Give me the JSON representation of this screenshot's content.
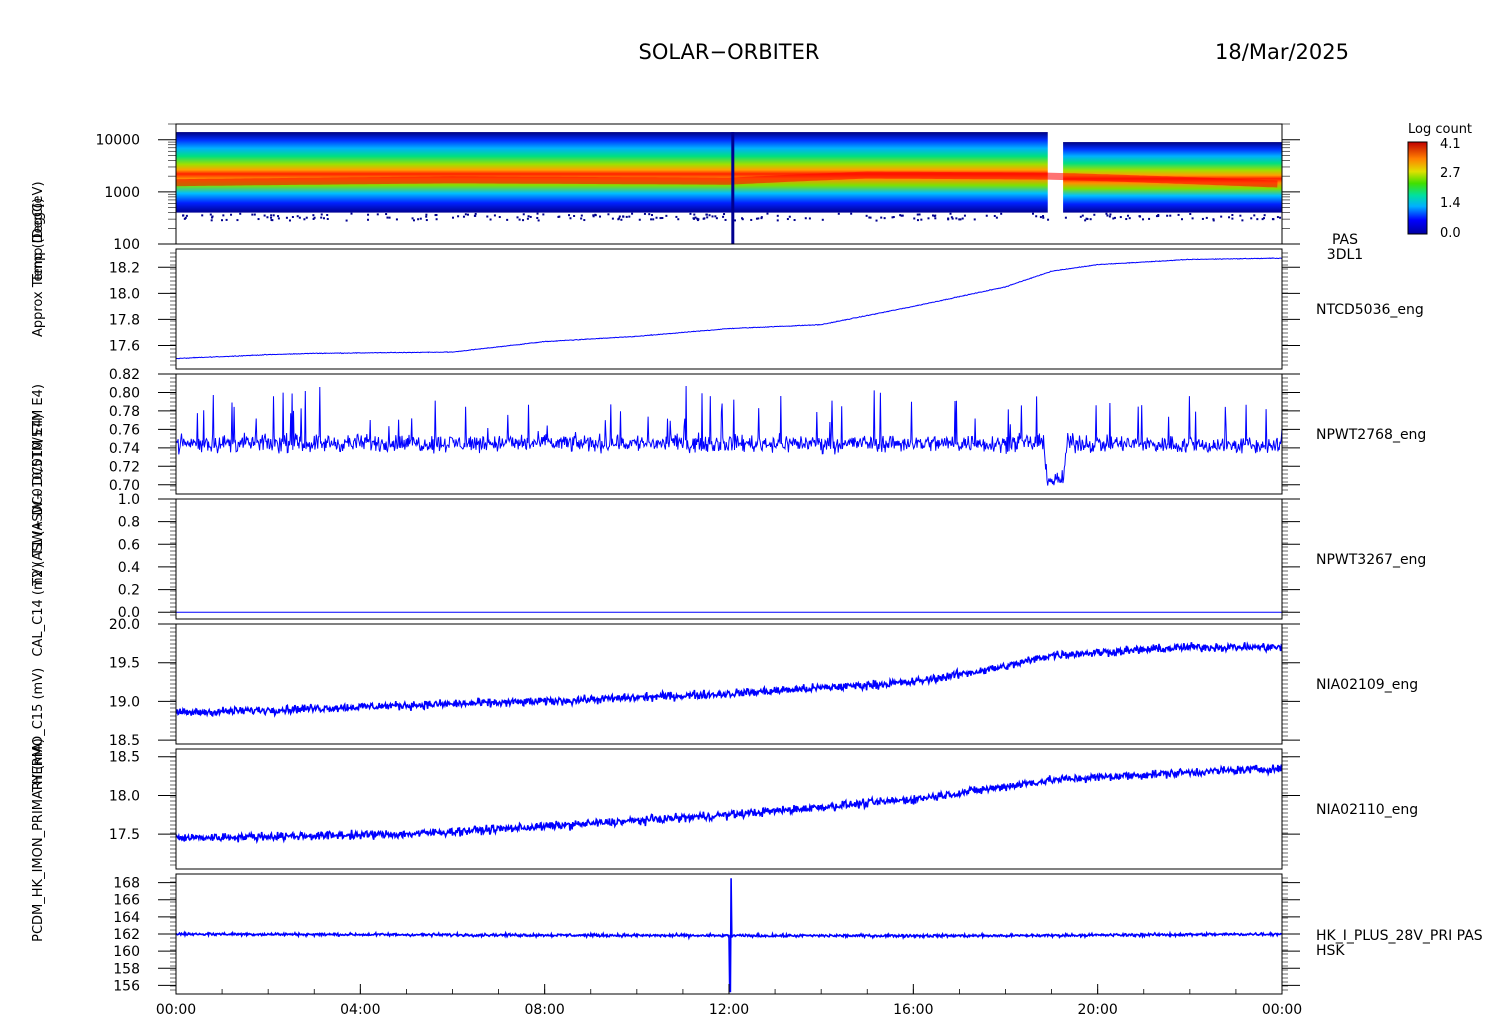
{
  "header": {
    "spacecraft": "SOLAR−ORBITER",
    "date": "18/Mar/2025"
  },
  "colorbar": {
    "title": "Log count",
    "ticks": [
      "4.1",
      "2.7",
      "1.4",
      "0.0"
    ]
  },
  "left_axis_labels": [
    "(eV)",
    "Temp (DegC)",
    "Approx Temp (DegC)",
    "T1 (ASW+ DC010/5TM E4)",
    "T2 (ASW+ DC010/5TM E4)",
    "CAL_C14 (mV)",
    "THERMO_C15 (mV)",
    "PCDM_HK_IMON_PRIMARY (mA)"
  ],
  "colors": {
    "trace": "#0000ff",
    "label": "#000088",
    "axis": "#000000"
  },
  "chart_data": [
    {
      "type": "heatmap",
      "id": "pas-spectrogram",
      "ylabel": "(eV)",
      "y_scale": "log",
      "ylim": [
        100,
        20000
      ],
      "y_ticks": [
        "10000",
        "1000",
        "100"
      ],
      "legend": [
        "PAS",
        "3DL1"
      ],
      "colorbar_range": [
        0.0,
        4.1
      ],
      "data_gap": [
        "18:55",
        "19:15"
      ],
      "peak_energy_trend": [
        {
          "t": "00:00",
          "ev": 1500
        },
        {
          "t": "06:00",
          "ev": 1700
        },
        {
          "t": "12:00",
          "ev": 1600
        },
        {
          "t": "15:00",
          "ev": 2100
        },
        {
          "t": "19:00",
          "ev": 2000
        },
        {
          "t": "24:00",
          "ev": 1400
        }
      ]
    },
    {
      "type": "line",
      "id": "ntcd5036",
      "series_label": "NTCD5036_eng",
      "ylabel": "Temp (DegC)",
      "ylim": [
        17.42,
        18.34
      ],
      "y_ticks": [
        "18.2",
        "18.0",
        "17.8",
        "17.6"
      ],
      "noise": 0.004,
      "points": [
        {
          "t": "00:00",
          "y": 17.5
        },
        {
          "t": "02:00",
          "y": 17.53
        },
        {
          "t": "03:00",
          "y": 17.54
        },
        {
          "t": "06:00",
          "y": 17.55
        },
        {
          "t": "08:00",
          "y": 17.63
        },
        {
          "t": "10:00",
          "y": 17.67
        },
        {
          "t": "12:00",
          "y": 17.73
        },
        {
          "t": "14:00",
          "y": 17.76
        },
        {
          "t": "16:00",
          "y": 17.9
        },
        {
          "t": "18:00",
          "y": 18.05
        },
        {
          "t": "19:00",
          "y": 18.17
        },
        {
          "t": "20:00",
          "y": 18.22
        },
        {
          "t": "22:00",
          "y": 18.26
        },
        {
          "t": "24:00",
          "y": 18.27
        }
      ]
    },
    {
      "type": "line",
      "id": "npwt2768",
      "series_label": "NPWT2768_eng",
      "ylabel": "T1 (ASW+ DC010/5TM E4)",
      "ylim": [
        0.69,
        0.82
      ],
      "y_ticks": [
        "0.82",
        "0.80",
        "0.78",
        "0.76",
        "0.74",
        "0.72",
        "0.70"
      ],
      "noise": 0.014,
      "points": [
        {
          "t": "00:00",
          "y": 0.745
        },
        {
          "t": "12:00",
          "y": 0.745
        },
        {
          "t": "18:50",
          "y": 0.745
        },
        {
          "t": "18:55",
          "y": 0.705
        },
        {
          "t": "19:15",
          "y": 0.705
        },
        {
          "t": "19:20",
          "y": 0.745
        },
        {
          "t": "24:00",
          "y": 0.742
        }
      ]
    },
    {
      "type": "line",
      "id": "npwt3267",
      "series_label": "NPWT3267_eng",
      "ylabel": "T2 (ASW+ DC010/5TM E4)",
      "ylim": [
        -0.06,
        1.0
      ],
      "y_ticks": [
        "1.0",
        "0.8",
        "0.6",
        "0.4",
        "0.2",
        "0.0"
      ],
      "noise": 0.0,
      "points": [
        {
          "t": "00:00",
          "y": 0.0
        },
        {
          "t": "24:00",
          "y": 0.0
        }
      ]
    },
    {
      "type": "line",
      "id": "nia02109",
      "series_label": "NIA02109_eng",
      "ylabel": "CAL_C14 (mV)",
      "ylim": [
        18.45,
        20.0
      ],
      "y_ticks": [
        "20.0",
        "19.5",
        "19.0",
        "18.5"
      ],
      "noise": 0.08,
      "points": [
        {
          "t": "00:00",
          "y": 18.85
        },
        {
          "t": "05:00",
          "y": 18.95
        },
        {
          "t": "08:00",
          "y": 19.0
        },
        {
          "t": "12:00",
          "y": 19.1
        },
        {
          "t": "16:00",
          "y": 19.25
        },
        {
          "t": "18:00",
          "y": 19.45
        },
        {
          "t": "19:00",
          "y": 19.6
        },
        {
          "t": "22:00",
          "y": 19.7
        },
        {
          "t": "24:00",
          "y": 19.7
        }
      ]
    },
    {
      "type": "line",
      "id": "nia02110",
      "series_label": "NIA02110_eng",
      "ylabel": "THERMO_C15 (mV)",
      "ylim": [
        17.05,
        18.6
      ],
      "y_ticks": [
        "18.5",
        "18.0",
        "17.5"
      ],
      "noise": 0.08,
      "points": [
        {
          "t": "00:00",
          "y": 17.45
        },
        {
          "t": "05:00",
          "y": 17.5
        },
        {
          "t": "08:00",
          "y": 17.6
        },
        {
          "t": "12:00",
          "y": 17.75
        },
        {
          "t": "16:00",
          "y": 17.95
        },
        {
          "t": "19:00",
          "y": 18.2
        },
        {
          "t": "22:00",
          "y": 18.3
        },
        {
          "t": "24:00",
          "y": 18.35
        }
      ]
    },
    {
      "type": "line",
      "id": "hk-i-plus-28v",
      "series_label": [
        "HK_I_PLUS_28V_PRI PAS",
        "HSK"
      ],
      "ylabel": "PCDM_HK_IMON_PRIMARY (mA)",
      "ylim": [
        155,
        169
      ],
      "y_ticks": [
        "168",
        "166",
        "164",
        "162",
        "160",
        "158",
        "156"
      ],
      "noise": 0.25,
      "spike": {
        "t": "12:02",
        "max": 168.5,
        "min": 155.3
      },
      "points": [
        {
          "t": "00:00",
          "y": 162.0
        },
        {
          "t": "06:00",
          "y": 161.9
        },
        {
          "t": "12:00",
          "y": 161.8
        },
        {
          "t": "18:00",
          "y": 161.8
        },
        {
          "t": "24:00",
          "y": 162.0
        }
      ]
    }
  ],
  "x_axis": {
    "ticks": [
      "00:00",
      "04:00",
      "08:00",
      "12:00",
      "16:00",
      "20:00",
      "00:00"
    ],
    "range_hours": [
      0,
      24
    ]
  }
}
